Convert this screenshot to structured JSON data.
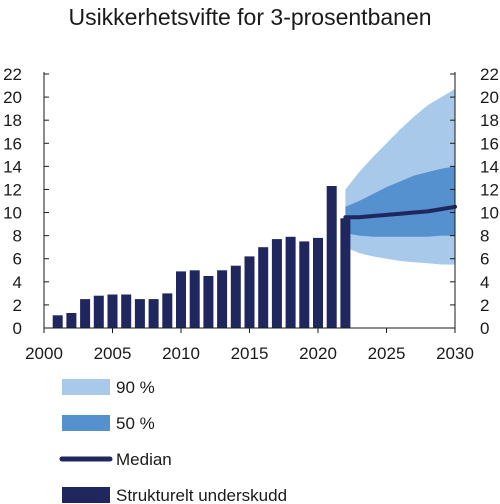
{
  "chart_data": {
    "type": "bar",
    "title": "Usikkerhetsvifte for 3-prosentbanen",
    "xlabel": "",
    "ylabel": "",
    "xlim": [
      2000,
      2030
    ],
    "ylim": [
      0,
      22
    ],
    "x_ticks": [
      2000,
      2005,
      2010,
      2015,
      2020,
      2025,
      2030
    ],
    "y_ticks": [
      0,
      2,
      4,
      6,
      8,
      10,
      12,
      14,
      16,
      18,
      20,
      22
    ],
    "grid": false,
    "legend_position": "bottom-left",
    "bars": {
      "name": "Strukturelt underskudd",
      "color": "#20265e",
      "years": [
        2001,
        2002,
        2003,
        2004,
        2005,
        2006,
        2007,
        2008,
        2009,
        2010,
        2011,
        2012,
        2013,
        2014,
        2015,
        2016,
        2017,
        2018,
        2019,
        2020,
        2021,
        2022
      ],
      "values": [
        1.1,
        1.3,
        2.5,
        2.8,
        2.9,
        2.9,
        2.5,
        2.5,
        3.0,
        4.9,
        5.0,
        4.5,
        5.0,
        5.4,
        6.2,
        7.0,
        7.7,
        7.9,
        7.5,
        7.8,
        12.3,
        9.5
      ]
    },
    "fan": {
      "years": [
        2022,
        2023,
        2024,
        2025,
        2026,
        2027,
        2028,
        2029,
        2030
      ],
      "median": [
        9.6,
        9.6,
        9.7,
        9.8,
        9.9,
        10.0,
        10.1,
        10.3,
        10.5
      ],
      "p50_lower": [
        8.2,
        8.0,
        7.9,
        7.9,
        7.9,
        7.9,
        7.9,
        8.0,
        8.0
      ],
      "p50_upper": [
        10.5,
        11.0,
        11.6,
        12.2,
        12.7,
        13.2,
        13.5,
        13.8,
        14.0
      ],
      "p90_lower": [
        7.0,
        6.5,
        6.2,
        6.0,
        5.8,
        5.7,
        5.6,
        5.5,
        5.5
      ],
      "p90_upper": [
        12.0,
        13.5,
        14.8,
        16.0,
        17.2,
        18.3,
        19.3,
        20.0,
        20.7
      ]
    },
    "legend": [
      {
        "label": "90 %",
        "kind": "patch",
        "color": "#a9c9ea"
      },
      {
        "label": "50 %",
        "kind": "patch",
        "color": "#5590cf"
      },
      {
        "label": "Median",
        "kind": "line",
        "color": "#20265e"
      },
      {
        "label": "Strukturelt underskudd",
        "kind": "patch",
        "color": "#20265e"
      }
    ],
    "colors": {
      "axis": "#1a1a1a",
      "p90": "#a9c9ea",
      "p50": "#5590cf",
      "median": "#20265e",
      "bars": "#20265e"
    }
  }
}
